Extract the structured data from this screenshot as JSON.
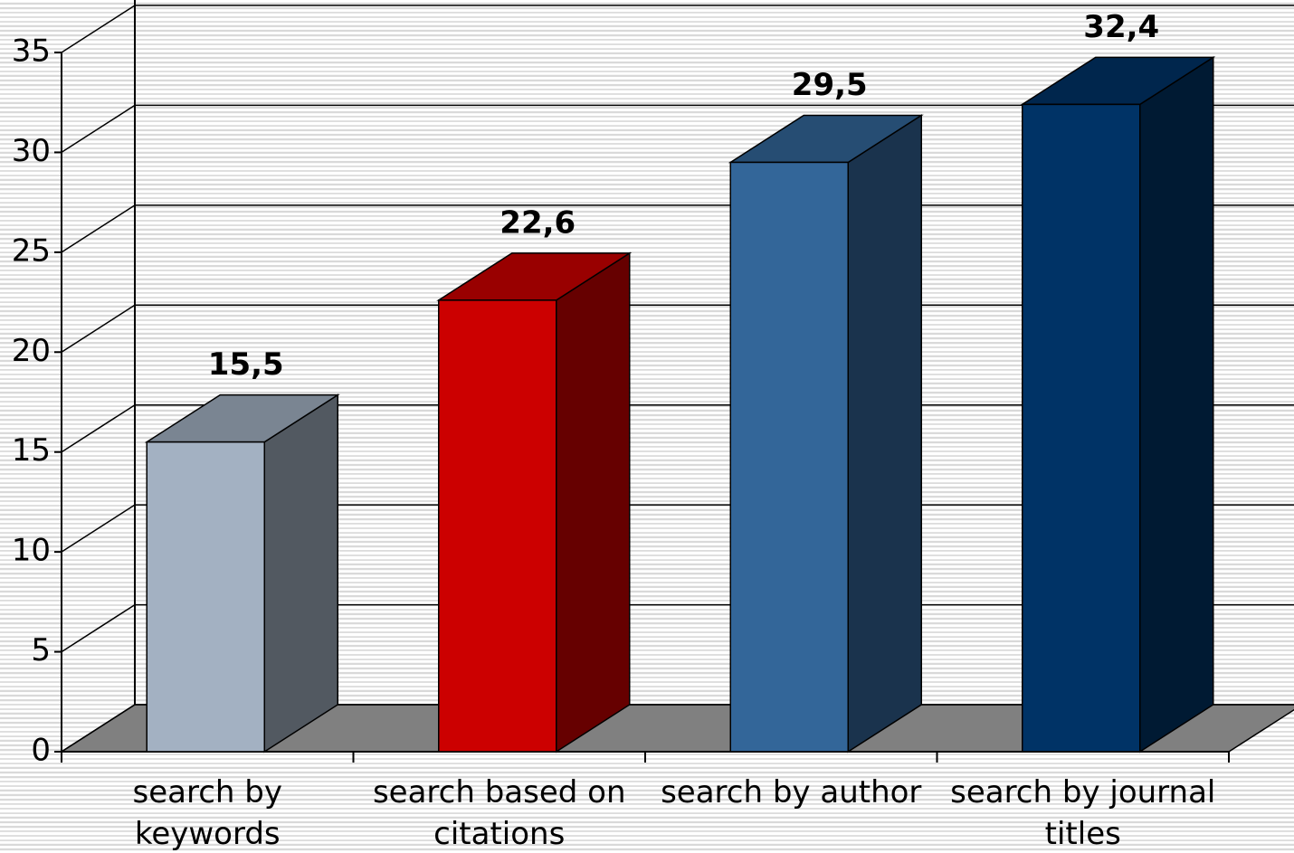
{
  "chart_data": {
    "type": "bar3d",
    "categories": [
      "search by keywords",
      "search based on citations",
      "search by author",
      "search by journal titles"
    ],
    "values": [
      15.5,
      22.6,
      29.5,
      32.4
    ],
    "value_labels": [
      "15,5",
      "22,6",
      "29,5",
      "32,4"
    ],
    "colors": [
      "#a3b1c2",
      "#cc0000",
      "#336699",
      "#003366"
    ],
    "ylim": [
      0,
      35
    ],
    "yticks": [
      0,
      5,
      10,
      15,
      20,
      25,
      30,
      35
    ],
    "grid": true
  }
}
